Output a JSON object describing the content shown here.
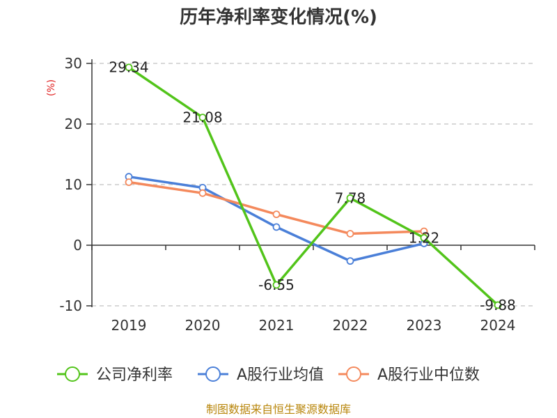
{
  "chart_data": {
    "type": "line",
    "title": "历年净利率变化情况(%)",
    "ylabel": "(%)",
    "categories": [
      "2019",
      "2020",
      "2021",
      "2022",
      "2023",
      "2024"
    ],
    "ylim": [
      -10,
      30
    ],
    "yticks": [
      30,
      20,
      10,
      0,
      -10
    ],
    "grid": true,
    "legend_position": "bottom",
    "series": [
      {
        "name": "公司净利率",
        "color": "#52c41a",
        "values": [
          29.34,
          21.08,
          -6.55,
          7.78,
          1.22,
          -9.88
        ],
        "labels": [
          "29.34",
          "21.08",
          "-6.55",
          "7.78",
          "1.22",
          "-9.88"
        ]
      },
      {
        "name": "A股行业均值",
        "color": "#4a7fd8",
        "values": [
          11.3,
          9.5,
          3.0,
          -2.6,
          0.3,
          null
        ]
      },
      {
        "name": "A股行业中位数",
        "color": "#f4895c",
        "values": [
          10.4,
          8.6,
          5.1,
          1.9,
          2.3,
          null
        ]
      }
    ]
  },
  "source": "制图数据来自恒生聚源数据库"
}
